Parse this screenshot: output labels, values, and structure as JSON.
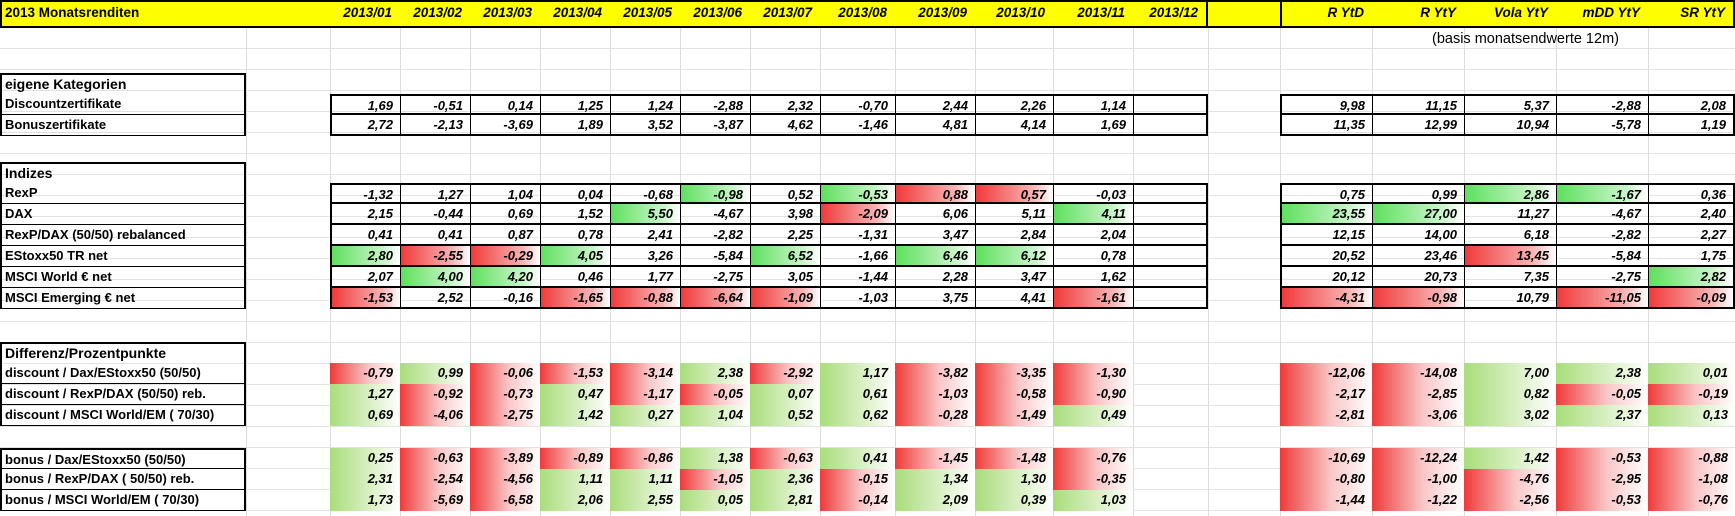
{
  "sheet": {
    "title": "2013 Monatsrenditen",
    "months": [
      "2013/01",
      "2013/02",
      "2013/03",
      "2013/04",
      "2013/05",
      "2013/06",
      "2013/07",
      "2013/08",
      "2013/09",
      "2013/10",
      "2013/11",
      "2013/12"
    ],
    "stats": [
      "R YtD",
      "R YtY",
      "Vola YtY",
      "mDD YtY",
      "SR YtY"
    ],
    "note": "(basis monatsendwerte 12m)",
    "colors": {
      "header_fill": "#ffff00",
      "green": "#5ee05e",
      "red": "#f03a3a"
    }
  },
  "sections": [
    {
      "title": "eigene Kategorien",
      "style": "box",
      "rows": [
        {
          "label": "Discountzertifikate",
          "values": [
            "1,69",
            "-0,51",
            "0,14",
            "1,25",
            "1,24",
            "-2,88",
            "2,32",
            "-0,70",
            "2,44",
            "2,26",
            "1,14",
            ""
          ],
          "stats": [
            "9,98",
            "11,15",
            "5,37",
            "-2,88",
            "2,08"
          ],
          "hl": {},
          "shl": {}
        },
        {
          "label": "Bonuszertifikate",
          "values": [
            "2,72",
            "-2,13",
            "-3,69",
            "1,89",
            "3,52",
            "-3,87",
            "4,62",
            "-1,46",
            "4,81",
            "4,14",
            "1,69",
            ""
          ],
          "stats": [
            "11,35",
            "12,99",
            "10,94",
            "-5,78",
            "1,19"
          ],
          "hl": {},
          "shl": {}
        }
      ]
    },
    {
      "title": "Indizes",
      "style": "box",
      "rows": [
        {
          "label": "RexP",
          "values": [
            "-1,32",
            "1,27",
            "1,04",
            "0,04",
            "-0,68",
            "-0,98",
            "0,52",
            "-0,53",
            "0,88",
            "0,57",
            "-0,03",
            ""
          ],
          "stats": [
            "0,75",
            "0,99",
            "2,86",
            "-1,67",
            "0,36"
          ],
          "hl": {
            "5": "g",
            "7": "g",
            "8": "r",
            "9": "r"
          },
          "shl": {
            "2": "g",
            "3": "g"
          }
        },
        {
          "label": "DAX",
          "values": [
            "2,15",
            "-0,44",
            "0,69",
            "1,52",
            "5,50",
            "-4,67",
            "3,98",
            "-2,09",
            "6,06",
            "5,11",
            "4,11",
            ""
          ],
          "stats": [
            "23,55",
            "27,00",
            "11,27",
            "-4,67",
            "2,40"
          ],
          "hl": {
            "4": "g",
            "7": "r",
            "10": "g"
          },
          "shl": {
            "0": "g",
            "1": "g"
          }
        },
        {
          "label": "RexP/DAX (50/50) rebalanced",
          "values": [
            "0,41",
            "0,41",
            "0,87",
            "0,78",
            "2,41",
            "-2,82",
            "2,25",
            "-1,31",
            "3,47",
            "2,84",
            "2,04",
            ""
          ],
          "stats": [
            "12,15",
            "14,00",
            "6,18",
            "-2,82",
            "2,27"
          ],
          "hl": {},
          "shl": {}
        },
        {
          "label": "EStoxx50 TR net",
          "values": [
            "2,80",
            "-2,55",
            "-0,29",
            "4,05",
            "3,26",
            "-5,84",
            "6,52",
            "-1,66",
            "6,46",
            "6,12",
            "0,78",
            ""
          ],
          "stats": [
            "20,52",
            "23,46",
            "13,45",
            "-5,84",
            "1,75"
          ],
          "hl": {
            "0": "g",
            "1": "r",
            "2": "r",
            "3": "g",
            "6": "g",
            "8": "g",
            "9": "g"
          },
          "shl": {
            "2": "r"
          }
        },
        {
          "label": "MSCI World € net",
          "values": [
            "2,07",
            "4,00",
            "4,20",
            "0,46",
            "1,77",
            "-2,75",
            "3,05",
            "-1,44",
            "2,28",
            "3,47",
            "1,62",
            ""
          ],
          "stats": [
            "20,12",
            "20,73",
            "7,35",
            "-2,75",
            "2,82"
          ],
          "hl": {
            "1": "g",
            "2": "g"
          },
          "shl": {
            "4": "g"
          }
        },
        {
          "label": "MSCI Emerging € net",
          "values": [
            "-1,53",
            "2,52",
            "-0,16",
            "-1,65",
            "-0,88",
            "-6,64",
            "-1,09",
            "-1,03",
            "3,75",
            "4,41",
            "-1,61",
            ""
          ],
          "stats": [
            "-4,31",
            "-0,98",
            "10,79",
            "-11,05",
            "-0,09"
          ],
          "hl": {
            "0": "r",
            "3": "r",
            "4": "r",
            "5": "r",
            "6": "r",
            "10": "r"
          },
          "shl": {
            "0": "r",
            "1": "r",
            "3": "r",
            "4": "r"
          }
        }
      ]
    },
    {
      "title": "Differenz/Prozentpunkte",
      "style": "grad",
      "rows": [
        {
          "label": "discount / Dax/EStoxx50 (50/50)",
          "values": [
            "-0,79",
            "0,99",
            "-0,06",
            "-1,53",
            "-3,14",
            "2,38",
            "-2,92",
            "1,17",
            "-3,82",
            "-3,35",
            "-1,30",
            ""
          ],
          "stats": [
            "-12,06",
            "-14,08",
            "7,00",
            "2,38",
            "0,01"
          ]
        },
        {
          "label": "discount / RexP/DAX (50/50) reb.",
          "values": [
            "1,27",
            "-0,92",
            "-0,73",
            "0,47",
            "-1,17",
            "-0,05",
            "0,07",
            "0,61",
            "-1,03",
            "-0,58",
            "-0,90",
            ""
          ],
          "stats": [
            "-2,17",
            "-2,85",
            "0,82",
            "-0,05",
            "-0,19"
          ]
        },
        {
          "label": "discount / MSCI World/EM ( 70/30)",
          "values": [
            "0,69",
            "-4,06",
            "-2,75",
            "1,42",
            "0,27",
            "1,04",
            "0,52",
            "0,62",
            "-0,28",
            "-1,49",
            "0,49",
            ""
          ],
          "stats": [
            "-2,81",
            "-3,06",
            "3,02",
            "2,37",
            "0,13"
          ]
        }
      ]
    },
    {
      "title": "",
      "style": "grad",
      "rows": [
        {
          "label": "bonus / Dax/EStoxx50 (50/50)",
          "values": [
            "0,25",
            "-0,63",
            "-3,89",
            "-0,89",
            "-0,86",
            "1,38",
            "-0,63",
            "0,41",
            "-1,45",
            "-1,48",
            "-0,76",
            ""
          ],
          "stats": [
            "-10,69",
            "-12,24",
            "1,42",
            "-0,53",
            "-0,88"
          ]
        },
        {
          "label": "bonus / RexP/DAX ( 50/50) reb.",
          "values": [
            "2,31",
            "-2,54",
            "-4,56",
            "1,11",
            "1,11",
            "-1,05",
            "2,36",
            "-0,15",
            "1,34",
            "1,30",
            "-0,35",
            ""
          ],
          "stats": [
            "-0,80",
            "-1,00",
            "-4,76",
            "-2,95",
            "-1,08"
          ]
        },
        {
          "label": "bonus / MSCI World/EM ( 70/30)",
          "values": [
            "1,73",
            "-5,69",
            "-6,58",
            "2,06",
            "2,55",
            "0,05",
            "2,81",
            "-0,14",
            "2,09",
            "0,39",
            "1,03",
            ""
          ],
          "stats": [
            "-1,44",
            "-1,22",
            "-2,56",
            "-0,53",
            "-0,76"
          ]
        }
      ]
    }
  ]
}
